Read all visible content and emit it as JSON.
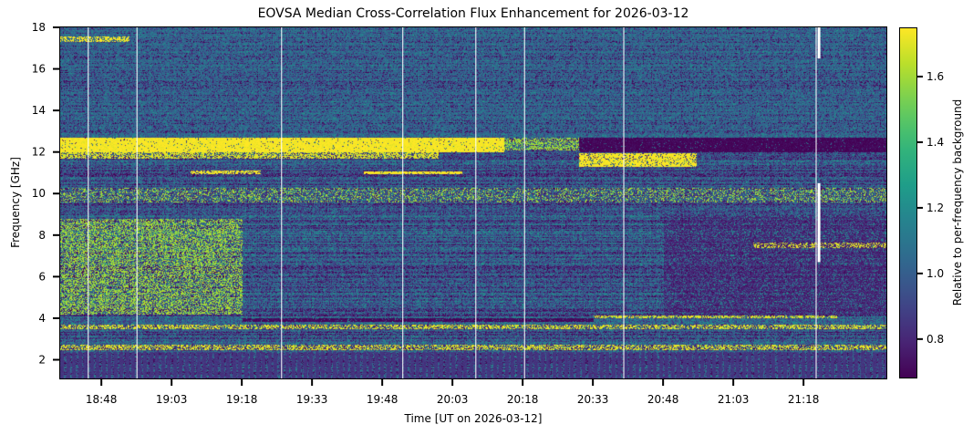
{
  "chart_data": {
    "type": "heatmap",
    "title": "EOVSA Median Cross-Correlation Flux Enhancement for 2026-03-12",
    "xlabel": "Time [UT on 2026-03-12]",
    "ylabel": "Frequency [GHz]",
    "colorbar_label": "Relative to per-frequency background",
    "colormap": "viridis",
    "x_units": "minutes after 18:00 UT",
    "xlim": [
      39.2,
      215.7
    ],
    "ylim": [
      1.1,
      18.0
    ],
    "clim": [
      0.68,
      1.75
    ],
    "x_ticks": [
      {
        "value": 48,
        "label": "18:48"
      },
      {
        "value": 63,
        "label": "19:03"
      },
      {
        "value": 78,
        "label": "19:18"
      },
      {
        "value": 93,
        "label": "19:33"
      },
      {
        "value": 108,
        "label": "19:48"
      },
      {
        "value": 123,
        "label": "20:03"
      },
      {
        "value": 138,
        "label": "20:18"
      },
      {
        "value": 153,
        "label": "20:33"
      },
      {
        "value": 168,
        "label": "20:48"
      },
      {
        "value": 183,
        "label": "21:03"
      },
      {
        "value": 198,
        "label": "21:18"
      }
    ],
    "y_ticks": [
      {
        "value": 2,
        "label": "2"
      },
      {
        "value": 4,
        "label": "4"
      },
      {
        "value": 6,
        "label": "6"
      },
      {
        "value": 8,
        "label": "8"
      },
      {
        "value": 10,
        "label": "10"
      },
      {
        "value": 12,
        "label": "12"
      },
      {
        "value": 14,
        "label": "14"
      },
      {
        "value": 16,
        "label": "16"
      },
      {
        "value": 18,
        "label": "18"
      }
    ],
    "colorbar_ticks": [
      {
        "value": 0.8,
        "label": "0.8"
      },
      {
        "value": 1.0,
        "label": "1.0"
      },
      {
        "value": 1.2,
        "label": "1.2"
      },
      {
        "value": 1.4,
        "label": "1.4"
      },
      {
        "value": 1.6,
        "label": "1.6"
      }
    ],
    "background_level": 1.0,
    "features": [
      {
        "name": "band-12ghz-enhanced",
        "t": [
          39.2,
          134
        ],
        "f": [
          12.0,
          12.7
        ],
        "value": 1.75,
        "density": 0.95
      },
      {
        "name": "band-12ghz-enhanced-tail",
        "t": [
          134,
          150
        ],
        "f": [
          12.1,
          12.7
        ],
        "value": 1.6,
        "density": 0.5
      },
      {
        "name": "band-12ghz-depressed",
        "t": [
          150,
          215.7
        ],
        "f": [
          12.0,
          12.7
        ],
        "value": 0.69,
        "density": 0.95
      },
      {
        "name": "band-11.8ghz-enhanced",
        "t": [
          39.2,
          120
        ],
        "f": [
          11.7,
          12.0
        ],
        "value": 1.7,
        "density": 0.6
      },
      {
        "name": "band-11.8ghz-enhanced-late",
        "t": [
          150,
          175
        ],
        "f": [
          11.3,
          11.95
        ],
        "value": 1.75,
        "density": 0.8
      },
      {
        "name": "band-11ghz-ribbon",
        "t": [
          104,
          125
        ],
        "f": [
          10.95,
          11.1
        ],
        "value": 1.75,
        "density": 0.9
      },
      {
        "name": "band-11ghz-ribbon-early",
        "t": [
          67,
          82
        ],
        "f": [
          10.95,
          11.15
        ],
        "value": 1.75,
        "density": 0.7
      },
      {
        "name": "band-17.5ghz-enhanced",
        "t": [
          39.2,
          54
        ],
        "f": [
          17.3,
          17.6
        ],
        "value": 1.75,
        "density": 0.9
      },
      {
        "name": "band-high-freq-noise",
        "t": [
          39.2,
          215.7
        ],
        "f": [
          12.7,
          18.0
        ],
        "value": 1.05,
        "density": 0.35
      },
      {
        "name": "band-10ghz-speckle",
        "t": [
          39.2,
          215.7
        ],
        "f": [
          9.6,
          10.3
        ],
        "value": 1.6,
        "density": 0.25
      },
      {
        "name": "region-low-freq-enhanced",
        "t": [
          39.2,
          78
        ],
        "f": [
          4.2,
          8.8
        ],
        "value": 1.6,
        "density": 0.45
      },
      {
        "name": "band-4ghz-depressed",
        "t": [
          78,
          153
        ],
        "f": [
          3.85,
          4.0
        ],
        "value": 0.7,
        "density": 0.9
      },
      {
        "name": "band-4ghz-enhanced",
        "t": [
          153,
          205
        ],
        "f": [
          4.0,
          4.15
        ],
        "value": 1.7,
        "density": 0.6
      },
      {
        "name": "band-3.6ghz-line",
        "t": [
          39.2,
          215.7
        ],
        "f": [
          3.5,
          3.7
        ],
        "value": 1.7,
        "density": 0.5
      },
      {
        "name": "band-2.6ghz-line",
        "t": [
          39.2,
          215.7
        ],
        "f": [
          2.5,
          2.75
        ],
        "value": 1.7,
        "density": 0.5
      },
      {
        "name": "band-1.5ghz-stripes",
        "t": [
          39.2,
          215.7
        ],
        "f": [
          1.1,
          2.4
        ],
        "value": 0.85,
        "density": 0.6
      },
      {
        "name": "band-7.5ghz-enhanced",
        "t": [
          187,
          215.7
        ],
        "f": [
          7.4,
          7.65
        ],
        "value": 1.7,
        "density": 0.8
      },
      {
        "name": "region-late-depressed",
        "t": [
          168,
          215.7
        ],
        "f": [
          4.2,
          9.0
        ],
        "value": 0.78,
        "density": 0.5
      }
    ],
    "data_gaps": [
      {
        "t": 45.2,
        "f": [
          1.1,
          18.0
        ]
      },
      {
        "t": 55.6,
        "f": [
          1.1,
          18.0
        ]
      },
      {
        "t": 86.5,
        "f": [
          1.1,
          18.0
        ]
      },
      {
        "t": 112.4,
        "f": [
          1.1,
          18.0
        ]
      },
      {
        "t": 128.0,
        "f": [
          1.1,
          18.0
        ]
      },
      {
        "t": 138.4,
        "f": [
          1.1,
          18.0
        ]
      },
      {
        "t": 159.6,
        "f": [
          1.1,
          18.0
        ]
      },
      {
        "t": 200.7,
        "f": [
          1.1,
          18.0
        ]
      },
      {
        "t": 201.3,
        "f": [
          16.5,
          18.0
        ]
      },
      {
        "t": 201.3,
        "f": [
          6.7,
          10.5
        ]
      }
    ]
  }
}
